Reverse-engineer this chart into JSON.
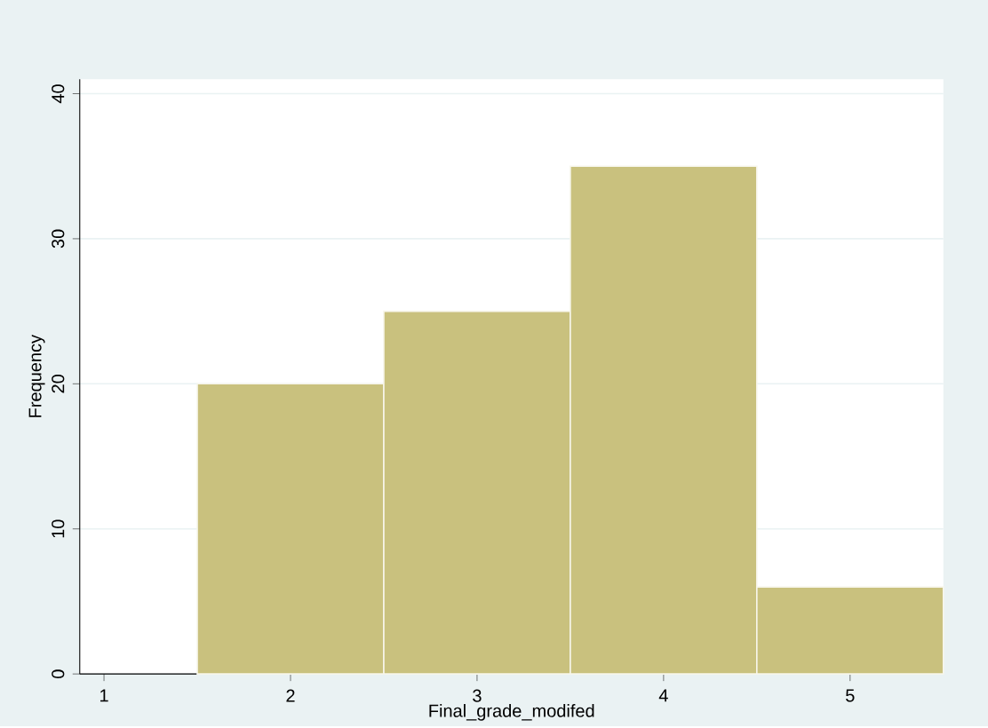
{
  "chart_data": {
    "type": "histogram",
    "xlabel": "Final_grade_modifed",
    "ylabel": "Frequency",
    "bins": [
      1.5,
      2.5,
      3.5,
      4.5,
      5.5
    ],
    "values": [
      20,
      25,
      35,
      6
    ],
    "color": "#c9c17e",
    "xlim": [
      0.87,
      5.5
    ],
    "ylim": [
      0,
      41
    ],
    "xticks": [
      1,
      2,
      3,
      4,
      5
    ],
    "yticks": [
      0,
      10,
      20,
      30,
      40
    ],
    "grid": "y"
  }
}
